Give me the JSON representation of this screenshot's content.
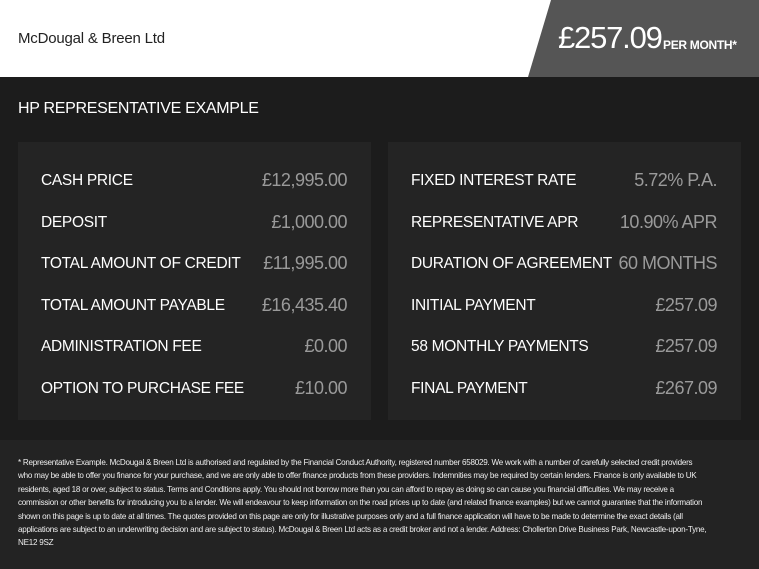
{
  "header": {
    "dealer": "McDougal & Breen Ltd",
    "price": "£257.09",
    "per_month": "PER MONTH*",
    "accent_color": "#555555"
  },
  "title": "HP REPRESENTATIVE EXAMPLE",
  "left": [
    {
      "label": "CASH PRICE",
      "value": "£12,995.00"
    },
    {
      "label": "DEPOSIT",
      "value": "£1,000.00"
    },
    {
      "label": "TOTAL AMOUNT OF CREDIT",
      "value": "£11,995.00"
    },
    {
      "label": "TOTAL AMOUNT PAYABLE",
      "value": "£16,435.40"
    },
    {
      "label": "ADMINISTRATION FEE",
      "value": "£0.00"
    },
    {
      "label": "OPTION TO PURCHASE FEE",
      "value": "£10.00"
    }
  ],
  "right": [
    {
      "label": "FIXED INTEREST RATE",
      "value": "5.72% P.A."
    },
    {
      "label": "REPRESENTATIVE APR",
      "value": "10.90% APR"
    },
    {
      "label": "DURATION OF AGREEMENT",
      "value": "60 MONTHS"
    },
    {
      "label": "INITIAL PAYMENT",
      "value": "£257.09"
    },
    {
      "label": "58 MONTHLY PAYMENTS",
      "value": "£257.09"
    },
    {
      "label": "FINAL PAYMENT",
      "value": "£267.09"
    }
  ],
  "footnote": "* Representative Example. McDougal & Breen Ltd is authorised and regulated by the Financial Conduct Authority, registered number 658029. We work with a number of carefully selected credit providers who may be able to offer you finance for your purchase, and we are only able to offer finance products from these providers. Indemnities may be required by certain lenders. Finance is only available to UK residents, aged 18 or over, subject to status. Terms and Conditions apply. You should not borrow more than you can afford to repay as doing so can cause you financial difficulties. We may receive a commission or other benefits for introducing you to a lender. We will endeavour to keep information on the road prices up to date (and related finance examples) but we cannot guarantee that the information shown on this page is up to date at all times. The quotes provided on this page are only for illustrative purposes only and a full finance application will have to be made to determine the exact details (all applications are subject to an underwriting decision and are subject to status). McDougal & Breen Ltd acts as a credit broker and not a lender. Address: Chollerton Drive Business Park, Newcastle-upon-Tyne, NE12 9SZ"
}
